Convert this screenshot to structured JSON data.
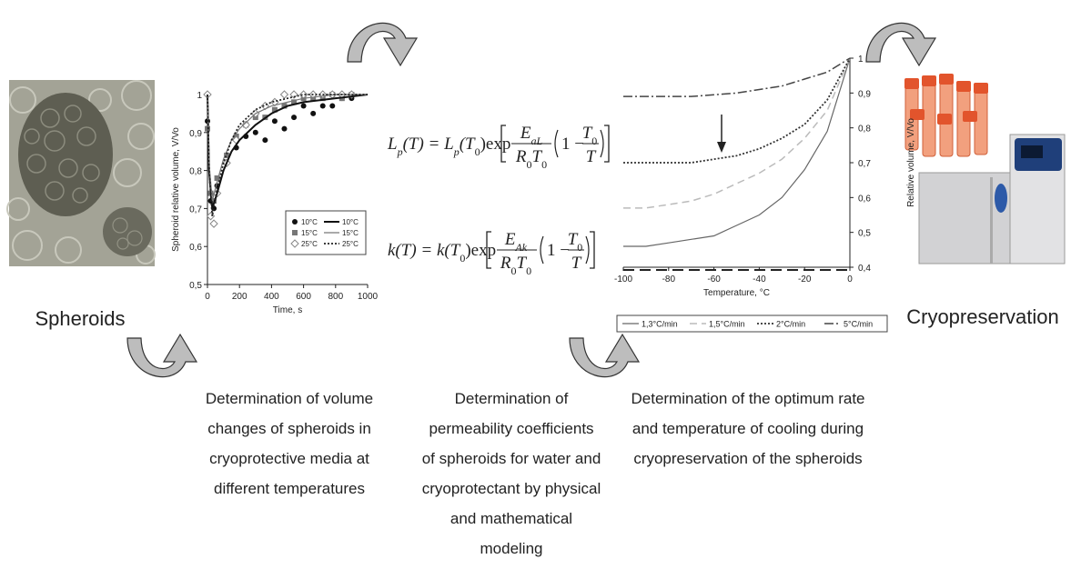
{
  "labels": {
    "left": "Spheroids",
    "right": "Cryopreservation"
  },
  "captions": [
    [
      "Determination of volume",
      "changes of spheroids in",
      "cryoprotective media at",
      "different temperatures"
    ],
    [
      "Determination of",
      "permeability coefficients",
      "of spheroids for water and",
      "cryoprotectant by physical",
      "and mathematical",
      "modeling"
    ],
    [
      "Determination of the optimum rate",
      "and temperature of cooling during",
      "cryopreservation of the spheroids"
    ]
  ],
  "equations": [
    {
      "lhs": "L",
      "lhs_sub": "p",
      "rhs": "(T) = L",
      "rhs_sub": "p",
      "arg": "(T",
      "arg_sub": "0",
      "func": ")exp",
      "num": "E",
      "num_sub": "aL",
      "den": "R",
      "den_sub": "0",
      "den2": "T",
      "den2_sub": "0",
      "paren": "1 −",
      "frac_num": "T",
      "frac_num_sub": "0",
      "frac_den": "T"
    },
    {
      "lhs": "k(T) = k(T",
      "lhs_sub": "0",
      "func": ")exp",
      "num": "E",
      "num_sub": "Ak",
      "den": "R",
      "den_sub": "0",
      "den2": "T",
      "den2_sub": "0",
      "paren": "1 −",
      "frac_num": "T",
      "frac_num_sub": "0",
      "frac_den": "T"
    }
  ],
  "chart_data": [
    {
      "type": "scatter",
      "x_label": "Time, s",
      "y_label": "Spheroid relative volume, V/Vo",
      "xlim": [
        0,
        1000
      ],
      "xticks": [
        0,
        200,
        400,
        600,
        800,
        1000
      ],
      "ylim": [
        0.5,
        1.0
      ],
      "yticks": [
        {
          "value": 0.5,
          "label": "0,5"
        },
        {
          "value": 0.6,
          "label": "0,6"
        },
        {
          "value": 0.7,
          "label": "0,7"
        },
        {
          "value": 0.8,
          "label": "0,8"
        },
        {
          "value": 0.9,
          "label": "0,9"
        },
        1
      ],
      "y_axis": "left",
      "series": [
        {
          "name": "10°C",
          "marker": "circle",
          "color": "#111111",
          "x": [
            0,
            20,
            40,
            60,
            120,
            180,
            240,
            300,
            360,
            420,
            480,
            540,
            600,
            660,
            720,
            780,
            840,
            900
          ],
          "values": [
            0.93,
            0.72,
            0.7,
            0.76,
            0.82,
            0.86,
            0.89,
            0.9,
            0.88,
            0.93,
            0.91,
            0.94,
            0.97,
            0.95,
            0.97,
            0.97,
            0.99,
            0.99
          ]
        },
        {
          "name": "15°C",
          "marker": "square",
          "color": "#777777",
          "x": [
            0,
            20,
            40,
            60,
            120,
            180,
            240,
            300,
            360,
            420,
            480,
            540,
            600,
            660,
            720,
            780,
            840,
            900
          ],
          "values": [
            0.91,
            0.74,
            0.72,
            0.78,
            0.84,
            0.89,
            0.92,
            0.94,
            0.94,
            0.96,
            0.97,
            0.98,
            0.99,
            0.99,
            0.99,
            1.0,
            0.99,
            1.0
          ]
        },
        {
          "name": "25°C",
          "marker": "diamond",
          "color": "#888888",
          "x": [
            0,
            20,
            40,
            60,
            120,
            180,
            240,
            300,
            360,
            420,
            480,
            540,
            600,
            660,
            720,
            780,
            840,
            900
          ],
          "values": [
            1.0,
            0.68,
            0.66,
            0.74,
            0.82,
            0.88,
            0.92,
            0.95,
            0.97,
            0.98,
            1.0,
            1.0,
            1.0,
            1.0,
            1.0,
            1.0,
            1.0,
            1.0
          ]
        },
        {
          "name": "10°C",
          "style": "solid-bold",
          "color": "#111111",
          "x": [
            0,
            10,
            30,
            60,
            100,
            150,
            200,
            300,
            400,
            500,
            600,
            800,
            1000
          ],
          "values": [
            1.0,
            0.8,
            0.7,
            0.74,
            0.8,
            0.85,
            0.88,
            0.92,
            0.95,
            0.97,
            0.98,
            0.99,
            1.0
          ]
        },
        {
          "name": "15°C",
          "style": "solid",
          "color": "#777777",
          "x": [
            0,
            10,
            30,
            60,
            100,
            150,
            200,
            300,
            400,
            500,
            600,
            800,
            1000
          ],
          "values": [
            1.0,
            0.82,
            0.72,
            0.77,
            0.83,
            0.88,
            0.91,
            0.95,
            0.97,
            0.98,
            0.99,
            1.0,
            1.0
          ]
        },
        {
          "name": "25°C",
          "style": "dotted",
          "color": "#222222",
          "x": [
            0,
            10,
            30,
            60,
            100,
            150,
            200,
            300,
            400,
            500,
            600,
            800,
            1000
          ],
          "values": [
            1.0,
            0.8,
            0.68,
            0.75,
            0.82,
            0.88,
            0.92,
            0.96,
            0.98,
            0.99,
            1.0,
            1.0,
            1.0
          ]
        }
      ]
    },
    {
      "type": "line",
      "x_label": "Temperature, °C",
      "y_label": "Relative volume, V/Vo",
      "xlim": [
        -100,
        0
      ],
      "xticks": [
        -100,
        -80,
        -60,
        -40,
        -20,
        0
      ],
      "ylim": [
        0.4,
        1.0
      ],
      "yticks": [
        {
          "value": 0.4,
          "label": "0,4"
        },
        {
          "value": 0.5,
          "label": "0,5"
        },
        {
          "value": 0.6,
          "label": "0,6"
        },
        {
          "value": 0.7,
          "label": "0,7"
        },
        {
          "value": 0.8,
          "label": "0,8"
        },
        {
          "value": 0.9,
          "label": "0,9"
        },
        1
      ],
      "y_axis": "right",
      "x": [
        -100,
        -90,
        -80,
        -70,
        -60,
        -50,
        -40,
        -30,
        -20,
        -10,
        0
      ],
      "series": [
        {
          "name": "1,3°C/min",
          "style": "solid",
          "color": "#666666",
          "values": [
            0.46,
            0.46,
            0.47,
            0.48,
            0.49,
            0.52,
            0.55,
            0.6,
            0.68,
            0.79,
            1.0
          ]
        },
        {
          "name": "1,5°C/min",
          "style": "dashed",
          "color": "#bbbbbb",
          "values": [
            0.57,
            0.57,
            0.58,
            0.59,
            0.61,
            0.64,
            0.67,
            0.71,
            0.77,
            0.85,
            1.0
          ]
        },
        {
          "name": "2°C/min",
          "style": "dotted",
          "color": "#333333",
          "values": [
            0.7,
            0.7,
            0.7,
            0.7,
            0.71,
            0.72,
            0.74,
            0.77,
            0.81,
            0.88,
            1.0
          ]
        },
        {
          "name": "5°C/min",
          "style": "dash-dot",
          "color": "#444444",
          "values": [
            0.89,
            0.89,
            0.89,
            0.89,
            0.895,
            0.9,
            0.91,
            0.92,
            0.94,
            0.96,
            1.0
          ]
        }
      ]
    }
  ]
}
